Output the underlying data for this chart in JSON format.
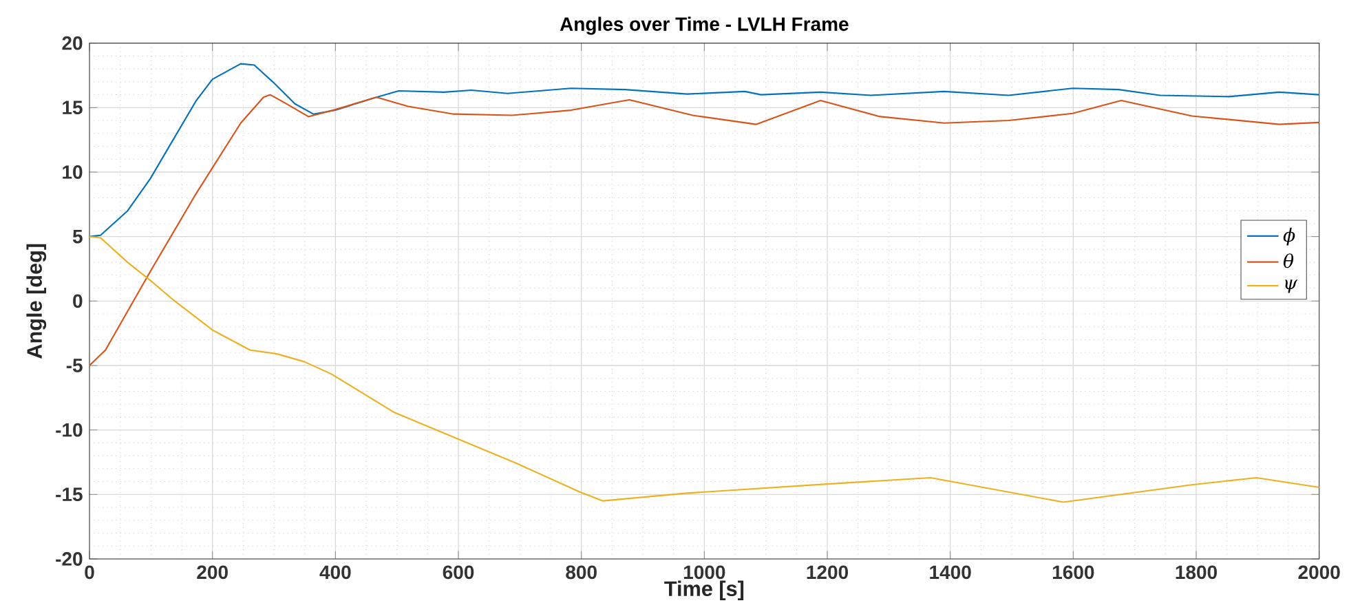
{
  "chart_data": {
    "type": "line",
    "title": "Angles over Time - LVLH Frame",
    "xlabel": "Time [s]",
    "ylabel": "Angle [deg]",
    "xlim": [
      0,
      2000
    ],
    "ylim": [
      -20,
      20
    ],
    "xticks": [
      0,
      200,
      400,
      600,
      800,
      1000,
      1200,
      1400,
      1600,
      1800,
      2000
    ],
    "yticks": [
      -20,
      -15,
      -10,
      -5,
      0,
      5,
      10,
      15,
      20
    ],
    "grid": true,
    "legend": "right",
    "series": [
      {
        "name": "ϕ",
        "color": "#0072bd",
        "x": [
          0,
          18,
          62,
          99,
          136,
          173,
          200,
          246,
          268,
          298,
          334,
          364,
          400,
          459,
          503,
          577,
          621,
          680,
          783,
          871,
          972,
          1066,
          1092,
          1189,
          1271,
          1390,
          1495,
          1599,
          1674,
          1741,
          1853,
          1935,
          2000
        ],
        "values": [
          5,
          5.1,
          7.0,
          9.5,
          12.5,
          15.5,
          17.2,
          18.4,
          18.3,
          17.0,
          15.3,
          14.5,
          14.8,
          15.7,
          16.3,
          16.2,
          16.35,
          16.1,
          16.5,
          16.4,
          16.05,
          16.25,
          16.0,
          16.2,
          15.95,
          16.25,
          15.95,
          16.5,
          16.4,
          15.95,
          15.85,
          16.2,
          16.0
        ]
      },
      {
        "name": "θ",
        "color": "#d95319",
        "x": [
          0,
          26,
          99,
          173,
          246,
          283,
          294,
          320,
          356,
          400,
          467,
          518,
          592,
          687,
          783,
          878,
          981,
          1084,
          1189,
          1286,
          1390,
          1495,
          1599,
          1678,
          1793,
          1935,
          2000
        ],
        "values": [
          -5,
          -3.8,
          2.3,
          8.3,
          13.8,
          15.8,
          16.0,
          15.3,
          14.3,
          14.85,
          15.8,
          15.1,
          14.5,
          14.4,
          14.8,
          15.6,
          14.4,
          13.7,
          15.55,
          14.3,
          13.8,
          14.0,
          14.55,
          15.55,
          14.35,
          13.7,
          13.85
        ]
      },
      {
        "name": "ψ",
        "color": "#edb120",
        "x": [
          0,
          18,
          62,
          99,
          136,
          200,
          261,
          305,
          349,
          393,
          496,
          592,
          695,
          797,
          835,
          972,
          1196,
          1368,
          1584,
          1793,
          1898,
          2000
        ],
        "values": [
          5,
          4.9,
          3.0,
          1.6,
          0.1,
          -2.25,
          -3.8,
          -4.1,
          -4.7,
          -5.65,
          -8.65,
          -10.55,
          -12.6,
          -14.8,
          -15.5,
          -14.9,
          -14.2,
          -13.7,
          -15.6,
          -14.25,
          -13.7,
          -14.45
        ]
      }
    ]
  }
}
